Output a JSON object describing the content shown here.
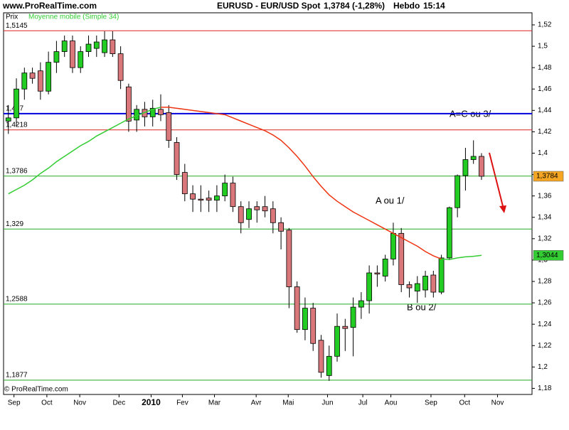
{
  "chart_data": {
    "type": "candlestick",
    "site": "www.ProRealTime.com",
    "title": "EURUSD - EUR/USD Spot",
    "quote": "1,3784 (-1,28%)",
    "period": "Hebdo",
    "time": "15:14",
    "y_label": "Prix",
    "indicator": {
      "name": "Moyenne mobile (Simple 34)",
      "color": "#33cc33",
      "down_color": "#ee3311",
      "values": [
        1.362,
        1.366,
        1.37,
        1.375,
        1.381,
        1.386,
        1.392,
        1.397,
        1.402,
        1.407,
        1.411,
        1.416,
        1.42,
        1.424,
        1.428,
        1.432,
        1.435,
        1.438,
        1.441,
        1.443,
        1.443,
        1.442,
        1.441,
        1.44,
        1.439,
        1.438,
        1.437,
        1.436,
        1.433,
        1.43,
        1.427,
        1.424,
        1.421,
        1.417,
        1.412,
        1.405,
        1.397,
        1.388,
        1.378,
        1.369,
        1.361,
        1.355,
        1.35,
        1.345,
        1.341,
        1.337,
        1.333,
        1.329,
        1.325,
        1.321,
        1.317,
        1.313,
        1.308,
        1.304,
        1.301,
        1.3005,
        1.302,
        1.303,
        1.3035,
        1.3044
      ],
      "colors": [
        "#33cc33",
        "#33cc33",
        "#33cc33",
        "#33cc33",
        "#33cc33",
        "#33cc33",
        "#33cc33",
        "#33cc33",
        "#33cc33",
        "#33cc33",
        "#33cc33",
        "#33cc33",
        "#33cc33",
        "#33cc33",
        "#33cc33",
        "#33cc33",
        "#33cc33",
        "#33cc33",
        "#33cc33",
        "#33cc33",
        "#ee3311",
        "#ee3311",
        "#ee3311",
        "#ee3311",
        "#ee3311",
        "#ee3311",
        "#ee3311",
        "#ee3311",
        "#ee3311",
        "#ee3311",
        "#ee3311",
        "#ee3311",
        "#ee3311",
        "#ee3311",
        "#ee3311",
        "#ee3311",
        "#ee3311",
        "#ee3311",
        "#ee3311",
        "#ee3311",
        "#ee3311",
        "#ee3311",
        "#ee3311",
        "#ee3311",
        "#ee3311",
        "#ee3311",
        "#ee3311",
        "#ee3311",
        "#ee3311",
        "#ee3311",
        "#ee3311",
        "#ee3311",
        "#ee3311",
        "#ee3311",
        "#ee3311",
        "#33cc33",
        "#33cc33",
        "#33cc33",
        "#33cc33",
        "#33cc33"
      ],
      "last": {
        "value": 1.3044,
        "label": "1,3044"
      }
    },
    "up_color": "#22cc22",
    "down_color": "#d9777b",
    "open": [
      1.43,
      1.433,
      1.46,
      1.475,
      1.477,
      1.458,
      1.485,
      1.495,
      1.505,
      1.48,
      1.495,
      1.498,
      1.494,
      1.506,
      1.493,
      1.462,
      1.431,
      1.441,
      1.434,
      1.441,
      1.438,
      1.41,
      1.382,
      1.362,
      1.357,
      1.358,
      1.356,
      1.36,
      1.372,
      1.35,
      1.338,
      1.35,
      1.35,
      1.348,
      1.335,
      1.328,
      1.275,
      1.235,
      1.255,
      1.225,
      1.192,
      1.21,
      1.238,
      1.237,
      1.256,
      1.262,
      1.288,
      1.285,
      1.301,
      1.325,
      1.277,
      1.271,
      1.272,
      1.286,
      1.27,
      1.302,
      1.349,
      1.379,
      1.394,
      1.397
    ],
    "high": [
      1.445,
      1.47,
      1.48,
      1.48,
      1.485,
      1.495,
      1.505,
      1.51,
      1.51,
      1.5,
      1.51,
      1.51,
      1.514,
      1.514,
      1.5,
      1.465,
      1.445,
      1.448,
      1.45,
      1.455,
      1.445,
      1.415,
      1.39,
      1.37,
      1.37,
      1.365,
      1.37,
      1.38,
      1.378,
      1.355,
      1.355,
      1.355,
      1.36,
      1.355,
      1.34,
      1.33,
      1.28,
      1.265,
      1.26,
      1.23,
      1.22,
      1.25,
      1.245,
      1.265,
      1.27,
      1.295,
      1.295,
      1.305,
      1.335,
      1.33,
      1.28,
      1.285,
      1.29,
      1.29,
      1.305,
      1.35,
      1.38,
      1.405,
      1.412,
      1.4
    ],
    "low": [
      1.418,
      1.425,
      1.45,
      1.465,
      1.45,
      1.455,
      1.475,
      1.49,
      1.475,
      1.475,
      1.49,
      1.49,
      1.49,
      1.49,
      1.46,
      1.42,
      1.42,
      1.425,
      1.425,
      1.43,
      1.405,
      1.375,
      1.355,
      1.345,
      1.345,
      1.345,
      1.345,
      1.355,
      1.345,
      1.325,
      1.33,
      1.335,
      1.34,
      1.325,
      1.31,
      1.255,
      1.232,
      1.225,
      1.215,
      1.19,
      1.187,
      1.205,
      1.215,
      1.21,
      1.245,
      1.25,
      1.275,
      1.28,
      1.295,
      1.27,
      1.265,
      1.26,
      1.265,
      1.265,
      1.268,
      1.3,
      1.34,
      1.365,
      1.39,
      1.375
    ],
    "close": [
      1.433,
      1.46,
      1.475,
      1.47,
      1.458,
      1.485,
      1.495,
      1.505,
      1.48,
      1.495,
      1.502,
      1.504,
      1.506,
      1.493,
      1.468,
      1.43,
      1.441,
      1.434,
      1.442,
      1.436,
      1.412,
      1.38,
      1.362,
      1.357,
      1.356,
      1.356,
      1.36,
      1.372,
      1.35,
      1.335,
      1.348,
      1.347,
      1.346,
      1.335,
      1.327,
      1.275,
      1.235,
      1.255,
      1.222,
      1.195,
      1.21,
      1.238,
      1.236,
      1.256,
      1.262,
      1.288,
      1.287,
      1.301,
      1.325,
      1.277,
      1.274,
      1.278,
      1.285,
      1.27,
      1.302,
      1.349,
      1.379,
      1.394,
      1.397,
      1.3784
    ],
    "last": {
      "value": 1.3784,
      "label": "1,3784"
    },
    "xlim": [
      -0.6,
      65.3
    ],
    "xticks": [
      {
        "value": 0.7,
        "label": "Sep"
      },
      {
        "value": 4.8,
        "label": "Oct"
      },
      {
        "value": 8.9,
        "label": "Nov"
      },
      {
        "value": 13.8,
        "label": "Dec"
      },
      {
        "value": 17.8,
        "label": "2010"
      },
      {
        "value": 21.7,
        "label": "Fev"
      },
      {
        "value": 25.7,
        "label": "Mar"
      },
      {
        "value": 30.9,
        "label": "Avr"
      },
      {
        "value": 34.9,
        "label": "Mai"
      },
      {
        "value": 39.8,
        "label": "Jun"
      },
      {
        "value": 44.2,
        "label": "Jul"
      },
      {
        "value": 47.7,
        "label": "Aou"
      },
      {
        "value": 52.7,
        "label": "Sep"
      },
      {
        "value": 56.9,
        "label": "Oct"
      },
      {
        "value": 61.0,
        "label": "Nov"
      }
    ],
    "ylim": [
      1.1743,
      1.5313
    ],
    "yticks": [
      {
        "value": 1.18,
        "label": "1,18"
      },
      {
        "value": 1.2,
        "label": "1,2"
      },
      {
        "value": 1.22,
        "label": "1,22"
      },
      {
        "value": 1.24,
        "label": "1,24"
      },
      {
        "value": 1.26,
        "label": "1,26"
      },
      {
        "value": 1.28,
        "label": "1,28"
      },
      {
        "value": 1.3,
        "label": "1,3"
      },
      {
        "value": 1.32,
        "label": "1,32"
      },
      {
        "value": 1.34,
        "label": "1,34"
      },
      {
        "value": 1.36,
        "label": "1,36"
      },
      {
        "value": 1.38,
        "label": "1,38"
      },
      {
        "value": 1.4,
        "label": "1,4"
      },
      {
        "value": 1.42,
        "label": "1,42"
      },
      {
        "value": 1.44,
        "label": "1,44"
      },
      {
        "value": 1.46,
        "label": "1,46"
      },
      {
        "value": 1.48,
        "label": "1,48"
      },
      {
        "value": 1.5,
        "label": "1,5"
      },
      {
        "value": 1.52,
        "label": "1,52"
      }
    ],
    "hlines": [
      {
        "value": 1.5145,
        "label": "1,5145",
        "color": "#dd2222"
      },
      {
        "value": 1.437,
        "label": "1,437",
        "color": "#0000dd"
      },
      {
        "value": 1.4218,
        "label": "1,4218",
        "color": "#dd2222"
      },
      {
        "value": 1.3786,
        "label": "1,3786",
        "color": "#22aa22"
      },
      {
        "value": 1.329,
        "label": "1,329",
        "color": "#22aa22"
      },
      {
        "value": 1.2588,
        "label": "1,2588",
        "color": "#22aa22"
      },
      {
        "value": 1.1877,
        "label": "1,1877",
        "color": "#22aa22"
      }
    ],
    "annotations": [
      "A=C ou 3/",
      "A ou 1/",
      "B ou 2/"
    ],
    "copyright": "© ProRealTime.com"
  }
}
